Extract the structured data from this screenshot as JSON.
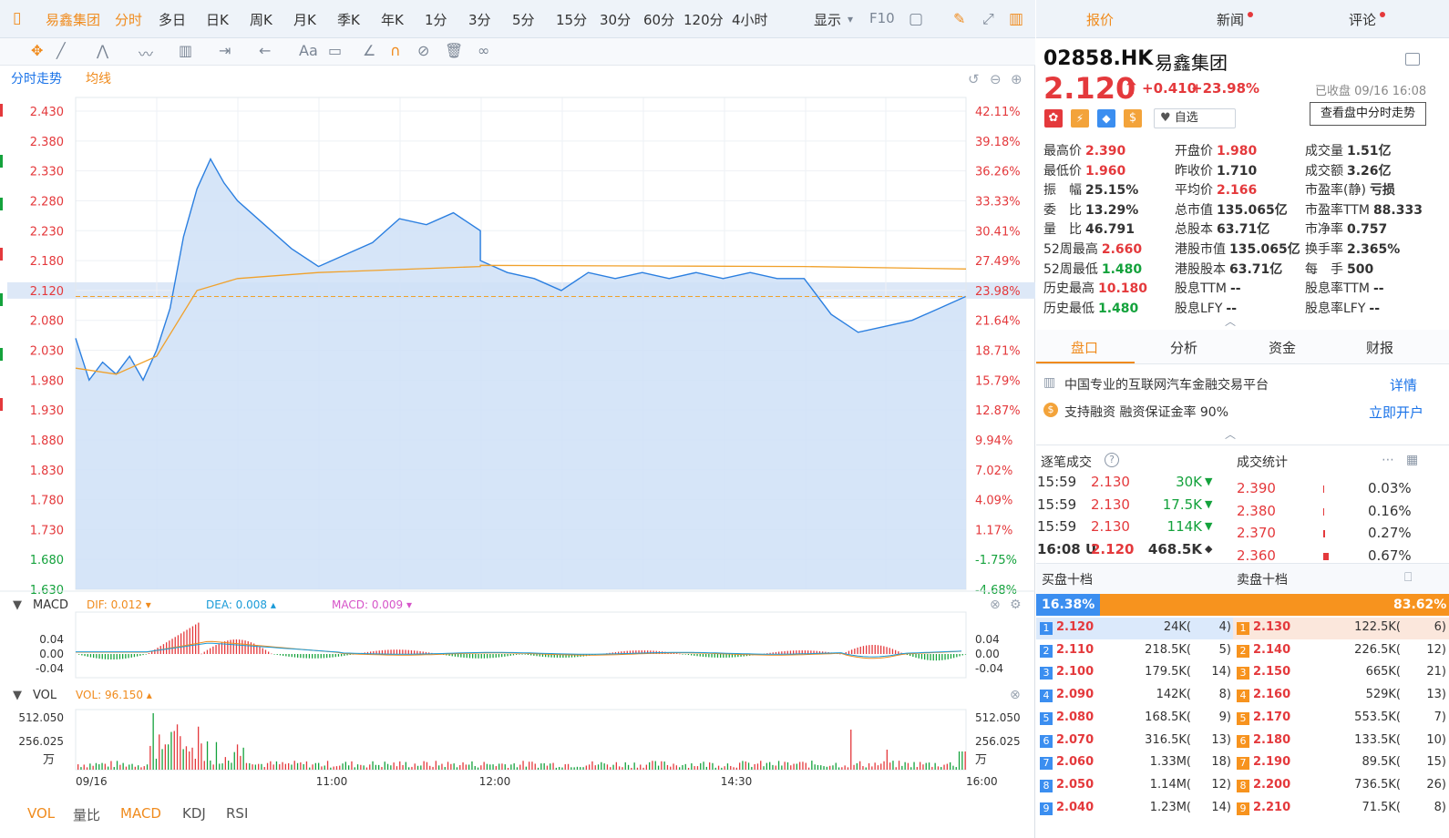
{
  "period_tabs": [
    "易鑫集团",
    "分时",
    "多日",
    "日K",
    "周K",
    "月K",
    "季K",
    "年K",
    "1分",
    "3分",
    "5分",
    "15分",
    "30分",
    "60分",
    "120分",
    "4小时"
  ],
  "period_active": 1,
  "display_label": "显示",
  "f10_label": "F10",
  "chart_labels": {
    "intraday": "分时走势",
    "avg": "均线"
  },
  "price_axis": [
    "2.430",
    "2.380",
    "2.330",
    "2.280",
    "2.230",
    "2.180",
    "2.120",
    "2.080",
    "2.030",
    "1.980",
    "1.930",
    "1.880",
    "1.830",
    "1.780",
    "1.730",
    "1.680",
    "1.630"
  ],
  "pct_axis": [
    "42.11%",
    "39.18%",
    "36.26%",
    "33.33%",
    "30.41%",
    "27.49%",
    "23.98%",
    "21.64%",
    "18.71%",
    "15.79%",
    "12.87%",
    "9.94%",
    "7.02%",
    "4.09%",
    "1.17%",
    "-1.75%",
    "-4.68%"
  ],
  "time_axis": [
    "09/16",
    "11:00",
    "12:00",
    "14:30",
    "16:00"
  ],
  "macd": {
    "title": "MACD",
    "dif": "DIF: 0.012",
    "dea": "DEA: 0.008",
    "macd": "MACD: 0.009",
    "axis": [
      "0.04",
      "0.00",
      "-0.04"
    ]
  },
  "vol": {
    "title": "VOL",
    "value": "VOL: 96.150",
    "axis": [
      "512.050",
      "256.025",
      "万"
    ]
  },
  "bottom_tabs": [
    "VOL",
    "量比",
    "MACD",
    "KDJ",
    "RSI"
  ],
  "right_tabs": [
    "报价",
    "新闻",
    "评论"
  ],
  "stock": {
    "code": "02858.HK",
    "name": "易鑫集团",
    "price": "2.120",
    "arrow": "⬆",
    "change": "+0.410",
    "pct": "+23.98%",
    "status": "已收盘 09/16 16:08",
    "tooltip": "查看盘中分时走势",
    "watch": "自选"
  },
  "quote": [
    [
      [
        "最高价",
        "2.390",
        "red"
      ],
      [
        "开盘价",
        "1.980",
        "red"
      ],
      [
        "成交量",
        "1.51亿",
        ""
      ]
    ],
    [
      [
        "最低价",
        "1.960",
        "red"
      ],
      [
        "昨收价",
        "1.710",
        ""
      ],
      [
        "成交额",
        "3.26亿",
        ""
      ]
    ],
    [
      [
        "振　幅",
        "25.15%",
        ""
      ],
      [
        "平均价",
        "2.166",
        "red"
      ],
      [
        "市盈率(静)",
        "亏损",
        ""
      ]
    ],
    [
      [
        "委　比",
        "13.29%",
        ""
      ],
      [
        "总市值",
        "135.065亿",
        ""
      ],
      [
        "市盈率TTM",
        "88.333",
        ""
      ]
    ],
    [
      [
        "量　比",
        "46.791",
        ""
      ],
      [
        "总股本",
        "63.71亿",
        ""
      ],
      [
        "市净率",
        "0.757",
        ""
      ]
    ],
    [
      [
        "52周最高",
        "2.660",
        "red"
      ],
      [
        "港股市值",
        "135.065亿",
        ""
      ],
      [
        "换手率",
        "2.365%",
        ""
      ]
    ],
    [
      [
        "52周最低",
        "1.480",
        "green"
      ],
      [
        "港股股本",
        "63.71亿",
        ""
      ],
      [
        "每　手",
        "500",
        ""
      ]
    ],
    [
      [
        "历史最高",
        "10.180",
        "red"
      ],
      [
        "股息TTM",
        "--",
        ""
      ],
      [
        "股息率TTM",
        "--",
        ""
      ]
    ],
    [
      [
        "历史最低",
        "1.480",
        "green"
      ],
      [
        "股息LFY",
        "--",
        ""
      ],
      [
        "股息率LFY",
        "--",
        ""
      ]
    ]
  ],
  "sub_tabs": [
    "盘口",
    "分析",
    "资金",
    "财报"
  ],
  "info": {
    "desc": "中国专业的互联网汽车金融交易平台",
    "detail": "详情",
    "margin": "支持融资  融资保证金率 90%",
    "open": "立即开户"
  },
  "ticks_title": "逐笔成交",
  "stats_title": "成交统计",
  "ticks": [
    [
      "15:59",
      "2.130",
      "30K",
      "▼"
    ],
    [
      "15:59",
      "2.130",
      "17.5K",
      "▼"
    ],
    [
      "15:59",
      "2.130",
      "114K",
      "▼"
    ],
    [
      "16:08 U",
      "2.120",
      "468.5K",
      "◆"
    ]
  ],
  "stats": [
    [
      "2.390",
      "0.03%"
    ],
    [
      "2.380",
      "0.16%"
    ],
    [
      "2.370",
      "0.27%"
    ],
    [
      "2.360",
      "0.67%"
    ]
  ],
  "book_titles": {
    "buy": "买盘十档",
    "sell": "卖盘十档"
  },
  "ratio": {
    "buy": "16.38%",
    "sell": "83.62%"
  },
  "bids": [
    [
      "1",
      "2.120",
      "24K(",
      "4)"
    ],
    [
      "2",
      "2.110",
      "218.5K(",
      "5)"
    ],
    [
      "3",
      "2.100",
      "179.5K(",
      "14)"
    ],
    [
      "4",
      "2.090",
      "142K(",
      "8)"
    ],
    [
      "5",
      "2.080",
      "168.5K(",
      "9)"
    ],
    [
      "6",
      "2.070",
      "316.5K(",
      "13)"
    ],
    [
      "7",
      "2.060",
      "1.33M(",
      "18)"
    ],
    [
      "8",
      "2.050",
      "1.14M(",
      "12)"
    ],
    [
      "9",
      "2.040",
      "1.23M(",
      "14)"
    ]
  ],
  "asks": [
    [
      "1",
      "2.130",
      "122.5K(",
      "6)"
    ],
    [
      "2",
      "2.140",
      "226.5K(",
      "12)"
    ],
    [
      "3",
      "2.150",
      "665K(",
      "21)"
    ],
    [
      "4",
      "2.160",
      "529K(",
      "13)"
    ],
    [
      "5",
      "2.170",
      "553.5K(",
      "7)"
    ],
    [
      "6",
      "2.180",
      "133.5K(",
      "10)"
    ],
    [
      "7",
      "2.190",
      "89.5K(",
      "15)"
    ],
    [
      "8",
      "2.200",
      "736.5K(",
      "26)"
    ],
    [
      "9",
      "2.210",
      "71.5K(",
      "8)"
    ]
  ],
  "chart_data": {
    "type": "line",
    "series": [
      {
        "name": "分时走势",
        "x": [
          "09:30",
          "09:35",
          "09:40",
          "09:45",
          "09:50",
          "09:55",
          "10:00",
          "10:05",
          "10:10",
          "10:15",
          "10:20",
          "10:25",
          "10:30",
          "10:40",
          "10:50",
          "11:00",
          "11:10",
          "11:20",
          "11:30",
          "11:40",
          "11:50",
          "12:00",
          "12:10",
          "12:20",
          "13:00",
          "13:10",
          "13:20",
          "13:30",
          "13:40",
          "13:50",
          "14:00",
          "14:10",
          "14:20",
          "14:30",
          "14:40",
          "14:50",
          "15:00",
          "15:10",
          "15:20",
          "15:30",
          "15:40",
          "15:50",
          "16:00"
        ],
        "values": [
          2.05,
          1.98,
          2.01,
          1.99,
          2.02,
          1.98,
          2.03,
          2.1,
          2.22,
          2.3,
          2.35,
          2.31,
          2.28,
          2.24,
          2.2,
          2.17,
          2.19,
          2.21,
          2.25,
          2.24,
          2.26,
          2.23,
          2.22,
          2.19,
          2.18,
          2.16,
          2.15,
          2.13,
          2.16,
          2.15,
          2.16,
          2.15,
          2.16,
          2.15,
          2.16,
          2.15,
          2.15,
          2.09,
          2.06,
          2.07,
          2.08,
          2.1,
          2.12
        ]
      },
      {
        "name": "均线",
        "x": [
          "09:30",
          "09:45",
          "10:00",
          "10:15",
          "10:30",
          "11:00",
          "11:30",
          "12:00",
          "13:00",
          "14:00",
          "15:00",
          "16:00"
        ],
        "values": [
          2.0,
          1.99,
          2.02,
          2.13,
          2.15,
          2.16,
          2.165,
          2.17,
          2.172,
          2.171,
          2.17,
          2.166
        ]
      }
    ],
    "ylim": [
      1.63,
      2.43
    ]
  }
}
